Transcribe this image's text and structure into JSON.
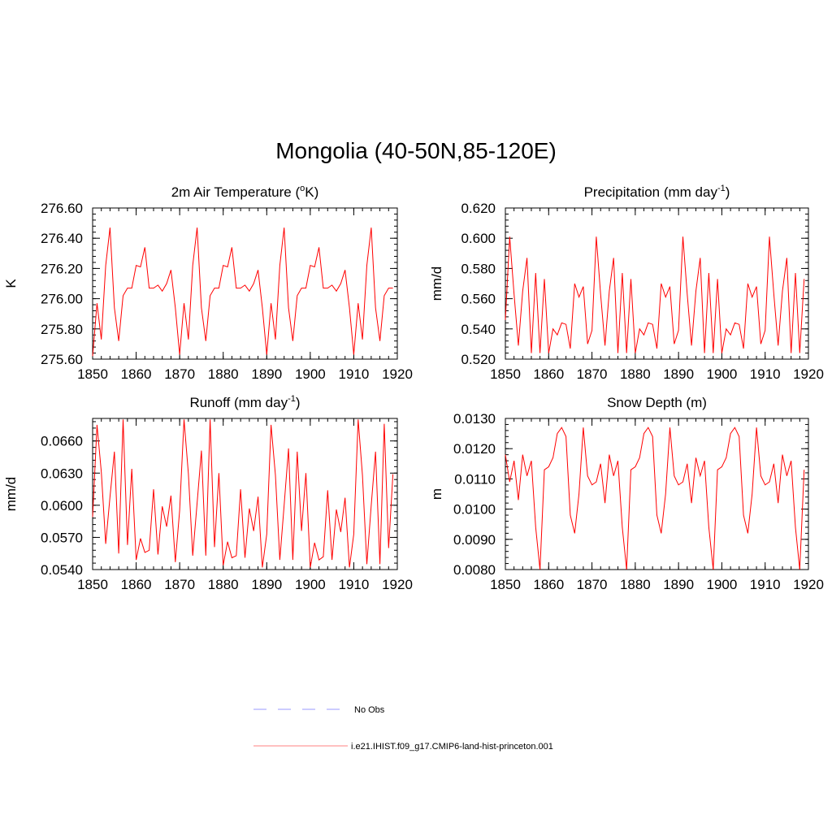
{
  "figure": {
    "title": "Mongolia (40-50N,85-120E)"
  },
  "legend": {
    "entries": [
      {
        "label": "No Obs",
        "color": "#9999ff",
        "style": "dashed"
      },
      {
        "label": "i.e21.IHIST.f09_g17.CMIP6-land-hist-princeton.001",
        "color": "#ff8080",
        "style": "solid"
      }
    ]
  },
  "chart_data": [
    {
      "type": "line",
      "title_main": "2m Air Temperature (",
      "title_sup_pre": "o",
      "title_after": "K)",
      "title_sup_post": "",
      "title_tail": "",
      "ylabel": "K",
      "xlim": [
        1850,
        1920
      ],
      "ylim": [
        275.6,
        276.6
      ],
      "yticks": [
        "275.60",
        "275.80",
        "276.00",
        "276.20",
        "276.40",
        "276.60"
      ],
      "ytick_values": [
        275.6,
        275.8,
        276.0,
        276.2,
        276.4,
        276.6
      ],
      "xticks": [
        "1850",
        "1860",
        "1870",
        "1880",
        "1890",
        "1900",
        "1910",
        "1920"
      ],
      "xtick_values": [
        1850,
        1860,
        1870,
        1880,
        1890,
        1900,
        1910,
        1920
      ],
      "line_color": "#ff0000",
      "x_start": 1850,
      "values": [
        275.62,
        275.97,
        275.73,
        276.22,
        276.47,
        275.94,
        275.72,
        276.02,
        276.07,
        276.07,
        276.22,
        276.21,
        276.34,
        276.07,
        276.07,
        276.09,
        276.05,
        276.1,
        276.19,
        275.94,
        275.63,
        275.97,
        275.73,
        276.22,
        276.47,
        275.94,
        275.72,
        276.02,
        276.07,
        276.07,
        276.22,
        276.21,
        276.34,
        276.07,
        276.07,
        276.09,
        276.05,
        276.1,
        276.19,
        275.94,
        275.63,
        275.97,
        275.73,
        276.22,
        276.47,
        275.94,
        275.72,
        276.02,
        276.07,
        276.07,
        276.22,
        276.21,
        276.34,
        276.07,
        276.07,
        276.09,
        276.05,
        276.1,
        276.19,
        275.94,
        275.63,
        275.97,
        275.73,
        276.22,
        276.47,
        275.94,
        275.72,
        276.02,
        276.07,
        276.07
      ]
    },
    {
      "type": "line",
      "title_main": "Precipitation (mm day",
      "title_sup_pre": "",
      "title_after": "",
      "title_sup_post": "-1",
      "title_tail": ")",
      "ylabel": "mm/d",
      "xlim": [
        1850,
        1920
      ],
      "ylim": [
        0.52,
        0.62
      ],
      "yticks": [
        "0.520",
        "0.540",
        "0.560",
        "0.580",
        "0.600",
        "0.620"
      ],
      "ytick_values": [
        0.52,
        0.54,
        0.56,
        0.58,
        0.6,
        0.62
      ],
      "xticks": [
        "1850",
        "1860",
        "1870",
        "1880",
        "1890",
        "1900",
        "1910",
        "1920"
      ],
      "xtick_values": [
        1850,
        1860,
        1870,
        1880,
        1890,
        1900,
        1910,
        1920
      ],
      "line_color": "#ff0000",
      "x_start": 1850,
      "values": [
        0.546,
        0.601,
        0.563,
        0.529,
        0.565,
        0.587,
        0.524,
        0.577,
        0.524,
        0.573,
        0.524,
        0.54,
        0.536,
        0.544,
        0.543,
        0.527,
        0.57,
        0.561,
        0.568,
        0.53,
        0.539,
        0.601,
        0.563,
        0.529,
        0.565,
        0.587,
        0.524,
        0.577,
        0.524,
        0.573,
        0.524,
        0.54,
        0.536,
        0.544,
        0.543,
        0.527,
        0.57,
        0.561,
        0.568,
        0.53,
        0.539,
        0.601,
        0.563,
        0.529,
        0.565,
        0.587,
        0.524,
        0.577,
        0.524,
        0.573,
        0.524,
        0.54,
        0.536,
        0.544,
        0.543,
        0.527,
        0.57,
        0.561,
        0.568,
        0.53,
        0.539,
        0.601,
        0.563,
        0.529,
        0.565,
        0.587,
        0.524,
        0.577,
        0.524,
        0.573
      ]
    },
    {
      "type": "line",
      "title_main": "Runoff (mm day",
      "title_sup_pre": "",
      "title_after": "",
      "title_sup_post": "-1",
      "title_tail": ")",
      "ylabel": "mm/d",
      "xlim": [
        1850,
        1920
      ],
      "ylim": [
        0.054,
        0.0681
      ],
      "yticks": [
        "0.0540",
        "0.0570",
        "0.0600",
        "0.0630",
        "0.0660"
      ],
      "ytick_values": [
        0.054,
        0.057,
        0.06,
        0.063,
        0.066
      ],
      "xticks": [
        "1850",
        "1860",
        "1870",
        "1880",
        "1890",
        "1900",
        "1910",
        "1920"
      ],
      "xtick_values": [
        1850,
        1860,
        1870,
        1880,
        1890,
        1900,
        1910,
        1920
      ],
      "line_color": "#ff0000",
      "x_start": 1850,
      "values": [
        0.0589,
        0.0675,
        0.0631,
        0.0564,
        0.0608,
        0.065,
        0.0555,
        0.068,
        0.0563,
        0.0634,
        0.0549,
        0.0569,
        0.0556,
        0.0558,
        0.0615,
        0.0554,
        0.0599,
        0.058,
        0.0609,
        0.0547,
        0.0595,
        0.068,
        0.0629,
        0.0553,
        0.0602,
        0.0651,
        0.0553,
        0.068,
        0.0561,
        0.063,
        0.0544,
        0.0566,
        0.0551,
        0.0553,
        0.0615,
        0.0551,
        0.0597,
        0.0576,
        0.0608,
        0.0542,
        0.0573,
        0.0675,
        0.0628,
        0.0549,
        0.06,
        0.0653,
        0.0549,
        0.065,
        0.0576,
        0.063,
        0.0542,
        0.0565,
        0.0549,
        0.0552,
        0.0614,
        0.0549,
        0.0596,
        0.0575,
        0.0607,
        0.0542,
        0.0573,
        0.068,
        0.0628,
        0.0545,
        0.06,
        0.065,
        0.0545,
        0.0676,
        0.056,
        0.0629
      ]
    },
    {
      "type": "line",
      "title_main": "Snow Depth (m)",
      "title_sup_pre": "",
      "title_after": "",
      "title_sup_post": "",
      "title_tail": "",
      "ylabel": "m",
      "xlim": [
        1850,
        1920
      ],
      "ylim": [
        0.008,
        0.013
      ],
      "yticks": [
        "0.0080",
        "0.0090",
        "0.0100",
        "0.0110",
        "0.0120",
        "0.0130"
      ],
      "ytick_values": [
        0.008,
        0.009,
        0.01,
        0.011,
        0.012,
        0.013
      ],
      "xticks": [
        "1850",
        "1860",
        "1870",
        "1880",
        "1890",
        "1900",
        "1910",
        "1920"
      ],
      "xtick_values": [
        1850,
        1860,
        1870,
        1880,
        1890,
        1900,
        1910,
        1920
      ],
      "line_color": "#ff0000",
      "x_start": 1850,
      "values": [
        0.0118,
        0.0109,
        0.0116,
        0.0103,
        0.0118,
        0.0111,
        0.0116,
        0.0094,
        0.008,
        0.0113,
        0.0114,
        0.0117,
        0.0125,
        0.0127,
        0.0124,
        0.0098,
        0.0092,
        0.0105,
        0.0127,
        0.0111,
        0.0108,
        0.0109,
        0.0115,
        0.0102,
        0.0118,
        0.0111,
        0.0116,
        0.0094,
        0.008,
        0.0113,
        0.0114,
        0.0117,
        0.0125,
        0.0127,
        0.0124,
        0.0098,
        0.0092,
        0.0105,
        0.0127,
        0.0111,
        0.0108,
        0.0109,
        0.0115,
        0.0102,
        0.0117,
        0.0111,
        0.0116,
        0.0094,
        0.008,
        0.0113,
        0.0114,
        0.0117,
        0.0125,
        0.0127,
        0.0124,
        0.0098,
        0.0092,
        0.0105,
        0.0127,
        0.0111,
        0.0108,
        0.0109,
        0.0115,
        0.0102,
        0.0118,
        0.0111,
        0.0116,
        0.0094,
        0.008,
        0.0113
      ]
    }
  ]
}
